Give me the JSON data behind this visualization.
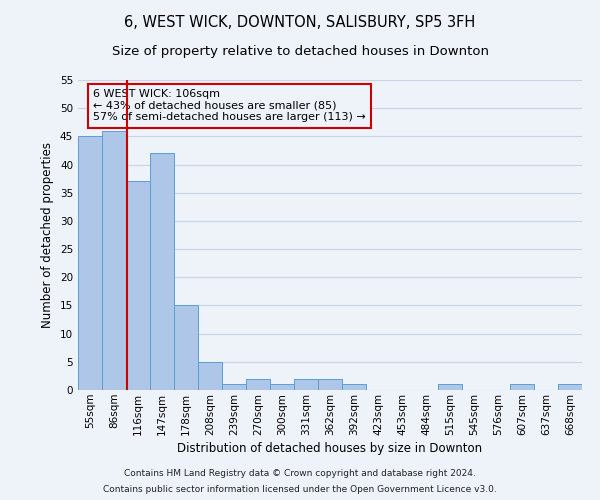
{
  "title": "6, WEST WICK, DOWNTON, SALISBURY, SP5 3FH",
  "subtitle": "Size of property relative to detached houses in Downton",
  "xlabel": "Distribution of detached houses by size in Downton",
  "ylabel": "Number of detached properties",
  "bar_labels": [
    "55sqm",
    "86sqm",
    "116sqm",
    "147sqm",
    "178sqm",
    "208sqm",
    "239sqm",
    "270sqm",
    "300sqm",
    "331sqm",
    "362sqm",
    "392sqm",
    "423sqm",
    "453sqm",
    "484sqm",
    "515sqm",
    "545sqm",
    "576sqm",
    "607sqm",
    "637sqm",
    "668sqm"
  ],
  "bar_values": [
    45,
    46,
    37,
    42,
    15,
    5,
    1,
    2,
    1,
    2,
    2,
    1,
    0,
    0,
    0,
    1,
    0,
    0,
    1,
    0,
    1
  ],
  "bar_color": "#aec6e8",
  "bar_edge_color": "#5a9fd4",
  "property_label": "6 WEST WICK: 106sqm",
  "annotation_line1": "← 43% of detached houses are smaller (85)",
  "annotation_line2": "57% of semi-detached houses are larger (113) →",
  "vline_x_index": 1.55,
  "ylim": [
    0,
    55
  ],
  "yticks": [
    0,
    5,
    10,
    15,
    20,
    25,
    30,
    35,
    40,
    45,
    50,
    55
  ],
  "footnote1": "Contains HM Land Registry data © Crown copyright and database right 2024.",
  "footnote2": "Contains public sector information licensed under the Open Government Licence v3.0.",
  "background_color": "#eef2f9",
  "grid_color": "#c8d4e8",
  "vline_color": "#cc0000",
  "box_color": "#cc0000",
  "title_fontsize": 10.5,
  "subtitle_fontsize": 9.5,
  "axis_label_fontsize": 8.5,
  "tick_fontsize": 7.5,
  "annotation_fontsize": 8,
  "footnote_fontsize": 6.5
}
